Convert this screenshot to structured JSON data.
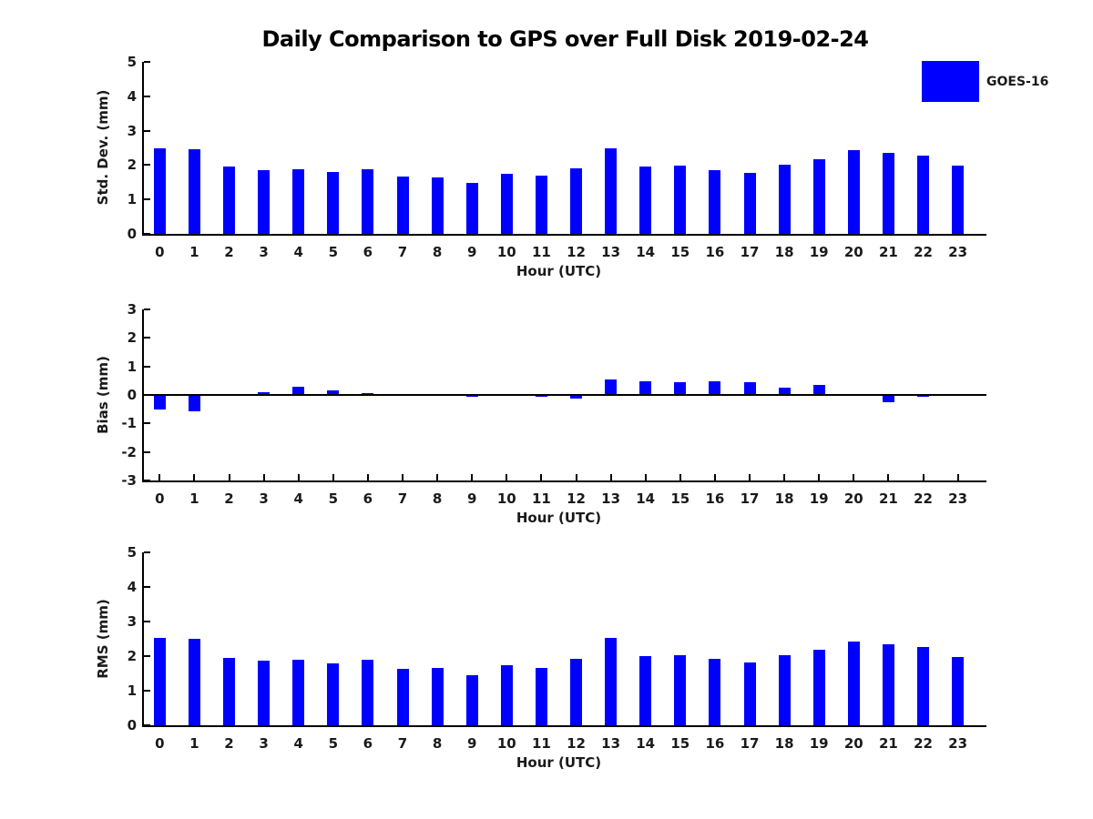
{
  "title": "Daily Comparison to GPS over Full Disk 2019-02-24",
  "legend": {
    "label": "GOES-16",
    "position": "top-right"
  },
  "colors": {
    "bar": "#0000fe",
    "axis": "#000000",
    "text": "#1a1a1a"
  },
  "chart_data": [
    {
      "type": "bar",
      "title": "",
      "ylabel": "Std. Dev. (mm)",
      "xlabel": "Hour (UTC)",
      "series_name": "GOES-16",
      "categories": [
        0,
        1,
        2,
        3,
        4,
        5,
        6,
        7,
        8,
        9,
        10,
        11,
        12,
        13,
        14,
        15,
        16,
        17,
        18,
        19,
        20,
        21,
        22,
        23
      ],
      "values": [
        2.48,
        2.45,
        1.96,
        1.86,
        1.88,
        1.81,
        1.88,
        1.66,
        1.65,
        1.47,
        1.75,
        1.68,
        1.9,
        2.49,
        1.95,
        1.99,
        1.86,
        1.78,
        2.01,
        2.17,
        2.43,
        2.36,
        2.28,
        1.99
      ],
      "ylim": [
        0,
        5
      ],
      "yticks": [
        0,
        1,
        2,
        3,
        4,
        5
      ],
      "grid": false,
      "bar_color": "#0000fe"
    },
    {
      "type": "bar",
      "title": "",
      "ylabel": "Bias (mm)",
      "xlabel": "Hour (UTC)",
      "series_name": "GOES-16",
      "categories": [
        0,
        1,
        2,
        3,
        4,
        5,
        6,
        7,
        8,
        9,
        10,
        11,
        12,
        13,
        14,
        15,
        16,
        17,
        18,
        19,
        20,
        21,
        22,
        23
      ],
      "values": [
        -0.52,
        -0.58,
        0.0,
        0.08,
        0.3,
        0.15,
        0.07,
        0.0,
        0.0,
        -0.05,
        -0.03,
        -0.06,
        -0.13,
        0.55,
        0.48,
        0.46,
        0.48,
        0.45,
        0.27,
        0.35,
        0.02,
        -0.25,
        -0.05,
        0.04
      ],
      "ylim": [
        -3,
        3
      ],
      "yticks": [
        3,
        2,
        1,
        0,
        -1,
        -2,
        -3
      ],
      "zero_line": true,
      "grid": false,
      "bar_color": "#0000fe"
    },
    {
      "type": "bar",
      "title": "",
      "ylabel": "RMS (mm)",
      "xlabel": "Hour (UTC)",
      "series_name": "GOES-16",
      "categories": [
        0,
        1,
        2,
        3,
        4,
        5,
        6,
        7,
        8,
        9,
        10,
        11,
        12,
        13,
        14,
        15,
        16,
        17,
        18,
        19,
        20,
        21,
        22,
        23
      ],
      "values": [
        2.53,
        2.51,
        1.96,
        1.88,
        1.9,
        1.8,
        1.89,
        1.64,
        1.66,
        1.46,
        1.75,
        1.66,
        1.91,
        2.53,
        1.99,
        2.02,
        1.91,
        1.81,
        2.02,
        2.19,
        2.43,
        2.35,
        2.26,
        1.97
      ],
      "ylim": [
        0,
        5
      ],
      "yticks": [
        0,
        1,
        2,
        3,
        4,
        5
      ],
      "grid": false,
      "bar_color": "#0000fe"
    }
  ]
}
